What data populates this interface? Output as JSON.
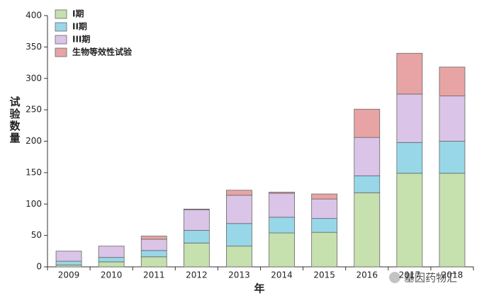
{
  "chart_data": {
    "type": "stacked_bar",
    "x_label": "年",
    "y_label": "试验数量",
    "categories": [
      "2009",
      "2010",
      "2011",
      "2012",
      "2013",
      "2014",
      "2015",
      "2016",
      "2017",
      "2018"
    ],
    "series": [
      {
        "name": "I期",
        "color": "#c6e0ae",
        "values": [
          3,
          8,
          16,
          38,
          33,
          54,
          55,
          118,
          149,
          149
        ]
      },
      {
        "name": "II期",
        "color": "#98d7e8",
        "values": [
          6,
          7,
          10,
          20,
          36,
          25,
          22,
          27,
          49,
          51
        ]
      },
      {
        "name": "III期",
        "color": "#dac4e7",
        "values": [
          16,
          18,
          18,
          33,
          45,
          38,
          31,
          61,
          77,
          72
        ]
      },
      {
        "name": "生物等效性试验",
        "color": "#e8a4a4",
        "values": [
          0,
          0,
          5,
          1,
          8,
          2,
          8,
          45,
          65,
          46
        ]
      }
    ],
    "ylim": [
      0,
      400
    ],
    "yticks": [
      0,
      50,
      100,
      150,
      200,
      250,
      300,
      350,
      400
    ],
    "legend": "top-left",
    "watermark": "基因药物汇"
  }
}
